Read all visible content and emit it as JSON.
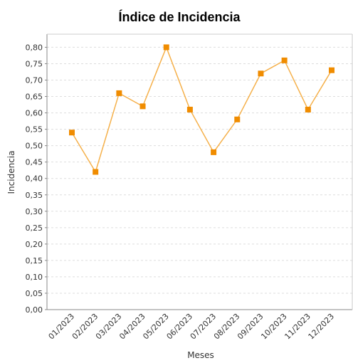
{
  "chart_data": {
    "type": "line",
    "title": "Índice de Incidencia",
    "x_label": "Meses",
    "y_label": "Incidencia",
    "categories": [
      "01/2023",
      "02/2023",
      "03/2023",
      "04/2023",
      "05/2023",
      "06/2023",
      "07/2023",
      "08/2023",
      "09/2023",
      "10/2023",
      "11/2023",
      "12/2023"
    ],
    "series": [
      {
        "name": "Incidencia",
        "color": "#f08c00",
        "values": [
          0.54,
          0.42,
          0.66,
          0.62,
          0.8,
          0.61,
          0.48,
          0.58,
          0.72,
          0.76,
          0.61,
          0.73
        ]
      }
    ],
    "ylim": [
      0,
      0.84
    ],
    "yticks": [
      {
        "value": 0,
        "label": "0,00"
      },
      {
        "value": 0.05,
        "label": "0,05"
      },
      {
        "value": 0.1,
        "label": "0,10"
      },
      {
        "value": 0.15,
        "label": "0,15"
      },
      {
        "value": 0.2,
        "label": "0,20"
      },
      {
        "value": 0.25,
        "label": "0,25"
      },
      {
        "value": 0.3,
        "label": "0,30"
      },
      {
        "value": 0.35,
        "label": "0,35"
      },
      {
        "value": 0.4,
        "label": "0,40"
      },
      {
        "value": 0.45,
        "label": "0,45"
      },
      {
        "value": 0.5,
        "label": "0,50"
      },
      {
        "value": 0.55,
        "label": "0,55"
      },
      {
        "value": 0.6,
        "label": "0,60"
      },
      {
        "value": 0.65,
        "label": "0,65"
      },
      {
        "value": 0.7,
        "label": "0,70"
      },
      {
        "value": 0.75,
        "label": "0,75"
      },
      {
        "value": 0.8,
        "label": "0,80"
      }
    ],
    "grid": true
  }
}
